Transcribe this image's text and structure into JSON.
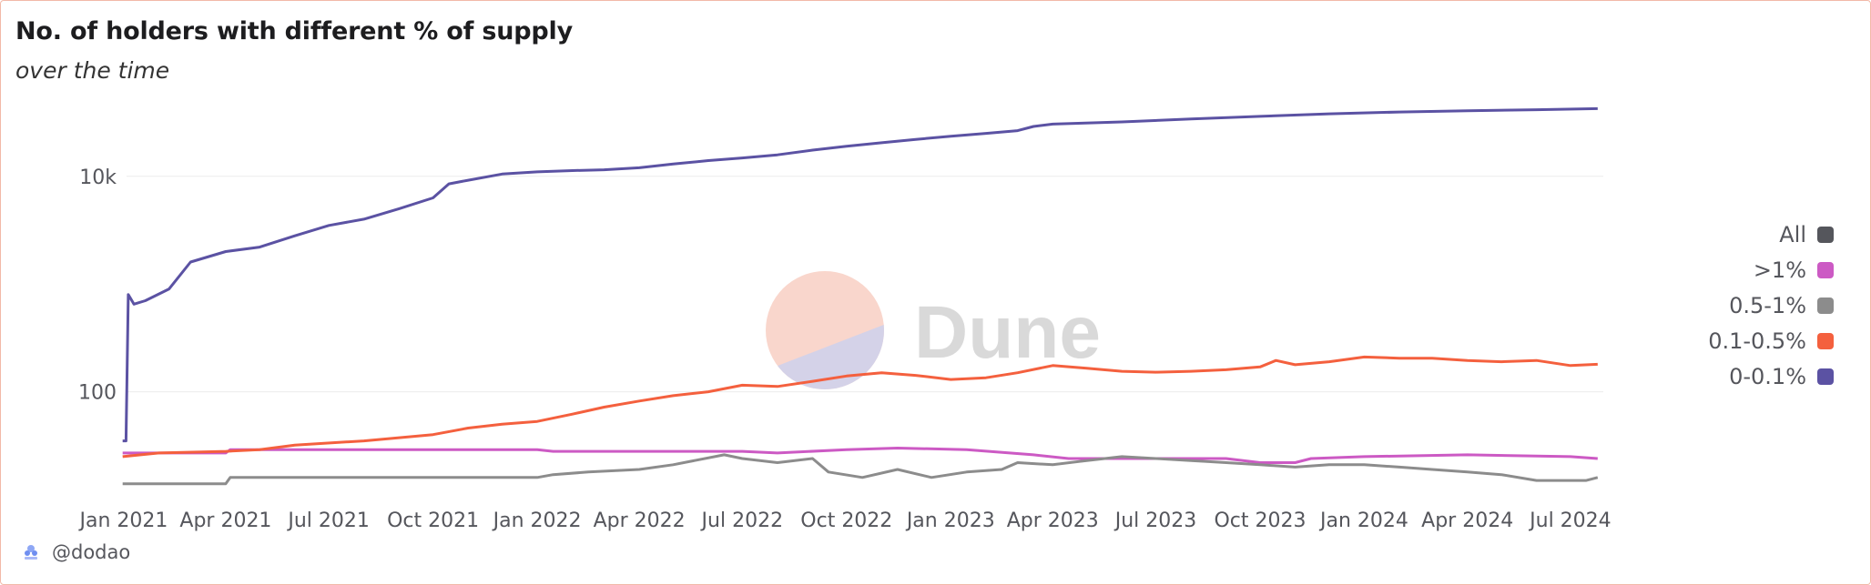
{
  "chart_data": {
    "type": "line",
    "title": "No. of holders with different % of supply",
    "subtitle": "over the time",
    "xlabel": "",
    "ylabel": "",
    "y_scale": "log",
    "ylim": [
      10,
      50000
    ],
    "x_range": [
      "2020-12-20",
      "2024-07-30"
    ],
    "x_tick_labels": [
      "Jan 2021",
      "Apr 2021",
      "Jul 2021",
      "Oct 2021",
      "Jan 2022",
      "Apr 2022",
      "Jul 2022",
      "Oct 2022",
      "Jan 2023",
      "Apr 2023",
      "Jul 2023",
      "Oct 2023",
      "Jan 2024",
      "Apr 2024",
      "Jul 2024"
    ],
    "y_tick_labels": [
      "100",
      "10k"
    ],
    "legend_position": "right",
    "series": [
      {
        "name": "0-0.1%",
        "color": "#5b52a3",
        "points": [
          [
            "2020-12-31",
            35
          ],
          [
            "2021-01-03",
            35
          ],
          [
            "2021-01-05",
            800
          ],
          [
            "2021-01-10",
            650
          ],
          [
            "2021-01-20",
            700
          ],
          [
            "2021-02-10",
            900
          ],
          [
            "2021-03-01",
            1600
          ],
          [
            "2021-04-01",
            2000
          ],
          [
            "2021-05-01",
            2200
          ],
          [
            "2021-06-01",
            2800
          ],
          [
            "2021-07-01",
            3500
          ],
          [
            "2021-08-01",
            4000
          ],
          [
            "2021-09-01",
            5000
          ],
          [
            "2021-10-01",
            6300
          ],
          [
            "2021-10-15",
            8500
          ],
          [
            "2021-11-01",
            9200
          ],
          [
            "2021-12-01",
            10500
          ],
          [
            "2022-01-01",
            11000
          ],
          [
            "2022-02-01",
            11300
          ],
          [
            "2022-03-01",
            11500
          ],
          [
            "2022-04-01",
            12000
          ],
          [
            "2022-05-01",
            13000
          ],
          [
            "2022-06-01",
            14000
          ],
          [
            "2022-07-01",
            14800
          ],
          [
            "2022-08-01",
            15800
          ],
          [
            "2022-09-01",
            17500
          ],
          [
            "2022-10-01",
            19000
          ],
          [
            "2022-11-01",
            20500
          ],
          [
            "2022-12-01",
            22000
          ],
          [
            "2023-01-01",
            23500
          ],
          [
            "2023-02-01",
            25000
          ],
          [
            "2023-03-01",
            26500
          ],
          [
            "2023-03-15",
            29000
          ],
          [
            "2023-04-01",
            30500
          ],
          [
            "2023-06-01",
            32000
          ],
          [
            "2023-08-01",
            34000
          ],
          [
            "2023-10-01",
            36000
          ],
          [
            "2023-12-01",
            38000
          ],
          [
            "2024-02-01",
            39500
          ],
          [
            "2024-04-01",
            40500
          ],
          [
            "2024-06-01",
            41500
          ],
          [
            "2024-07-25",
            42500
          ]
        ]
      },
      {
        "name": "0.1-0.5%",
        "color": "#f4603e",
        "points": [
          [
            "2020-12-31",
            25
          ],
          [
            "2021-02-01",
            27
          ],
          [
            "2021-04-01",
            28
          ],
          [
            "2021-05-01",
            29
          ],
          [
            "2021-06-01",
            32
          ],
          [
            "2021-08-01",
            35
          ],
          [
            "2021-10-01",
            40
          ],
          [
            "2021-11-01",
            46
          ],
          [
            "2021-12-01",
            50
          ],
          [
            "2022-01-01",
            53
          ],
          [
            "2022-02-01",
            62
          ],
          [
            "2022-03-01",
            72
          ],
          [
            "2022-04-01",
            82
          ],
          [
            "2022-05-01",
            92
          ],
          [
            "2022-06-01",
            100
          ],
          [
            "2022-07-01",
            115
          ],
          [
            "2022-08-01",
            112
          ],
          [
            "2022-09-01",
            125
          ],
          [
            "2022-10-01",
            140
          ],
          [
            "2022-11-01",
            150
          ],
          [
            "2022-12-01",
            142
          ],
          [
            "2023-01-01",
            130
          ],
          [
            "2023-02-01",
            135
          ],
          [
            "2023-03-01",
            150
          ],
          [
            "2023-04-01",
            175
          ],
          [
            "2023-05-01",
            165
          ],
          [
            "2023-06-01",
            155
          ],
          [
            "2023-07-01",
            152
          ],
          [
            "2023-08-01",
            155
          ],
          [
            "2023-09-01",
            160
          ],
          [
            "2023-10-01",
            170
          ],
          [
            "2023-10-15",
            195
          ],
          [
            "2023-11-01",
            178
          ],
          [
            "2023-12-01",
            190
          ],
          [
            "2024-01-01",
            210
          ],
          [
            "2024-02-01",
            205
          ],
          [
            "2024-03-01",
            205
          ],
          [
            "2024-04-01",
            195
          ],
          [
            "2024-05-01",
            190
          ],
          [
            "2024-06-01",
            195
          ],
          [
            "2024-07-01",
            175
          ],
          [
            "2024-07-25",
            180
          ]
        ]
      },
      {
        "name": "0.5-1%",
        "color": "#8c8c8c",
        "points": [
          [
            "2020-12-31",
            14
          ],
          [
            "2021-04-01",
            14
          ],
          [
            "2021-04-05",
            16
          ],
          [
            "2021-07-01",
            16
          ],
          [
            "2022-01-01",
            16
          ],
          [
            "2022-01-15",
            17
          ],
          [
            "2022-02-15",
            18
          ],
          [
            "2022-04-01",
            19
          ],
          [
            "2022-05-01",
            21
          ],
          [
            "2022-06-15",
            26
          ],
          [
            "2022-07-01",
            24
          ],
          [
            "2022-08-01",
            22
          ],
          [
            "2022-09-01",
            24
          ],
          [
            "2022-09-15",
            18
          ],
          [
            "2022-10-15",
            16
          ],
          [
            "2022-11-15",
            19
          ],
          [
            "2022-12-15",
            16
          ],
          [
            "2023-01-15",
            18
          ],
          [
            "2023-02-15",
            19
          ],
          [
            "2023-03-01",
            22
          ],
          [
            "2023-04-01",
            21
          ],
          [
            "2023-05-01",
            23
          ],
          [
            "2023-06-01",
            25
          ],
          [
            "2023-07-01",
            24
          ],
          [
            "2023-08-01",
            23
          ],
          [
            "2023-09-01",
            22
          ],
          [
            "2023-10-01",
            21
          ],
          [
            "2023-11-01",
            20
          ],
          [
            "2023-12-01",
            21
          ],
          [
            "2024-01-01",
            21
          ],
          [
            "2024-02-01",
            20
          ],
          [
            "2024-03-01",
            19
          ],
          [
            "2024-04-01",
            18
          ],
          [
            "2024-05-01",
            17
          ],
          [
            "2024-06-01",
            15
          ],
          [
            "2024-07-15",
            15
          ],
          [
            "2024-07-25",
            16
          ]
        ]
      },
      {
        "name": ">1%",
        "color": "#cc5ac4",
        "points": [
          [
            "2020-12-31",
            27
          ],
          [
            "2021-04-01",
            27
          ],
          [
            "2021-04-05",
            29
          ],
          [
            "2022-01-01",
            29
          ],
          [
            "2022-01-15",
            28
          ],
          [
            "2022-07-01",
            28
          ],
          [
            "2022-08-01",
            27
          ],
          [
            "2022-10-01",
            29
          ],
          [
            "2022-11-15",
            30
          ],
          [
            "2023-01-15",
            29
          ],
          [
            "2023-03-15",
            26
          ],
          [
            "2023-04-15",
            24
          ],
          [
            "2023-07-01",
            24
          ],
          [
            "2023-09-01",
            24
          ],
          [
            "2023-10-01",
            22
          ],
          [
            "2023-11-01",
            22
          ],
          [
            "2023-11-15",
            24
          ],
          [
            "2024-01-01",
            25
          ],
          [
            "2024-04-01",
            26
          ],
          [
            "2024-07-01",
            25
          ],
          [
            "2024-07-25",
            24
          ]
        ]
      },
      {
        "name": "All",
        "color": "#55565c",
        "points": []
      }
    ]
  },
  "legend": {
    "items": [
      {
        "label": "All",
        "color": "#55565c"
      },
      {
        "label": ">1%",
        "color": "#cc5ac4"
      },
      {
        "label": "0.5-1%",
        "color": "#8c8c8c"
      },
      {
        "label": "0.1-0.5%",
        "color": "#f4603e"
      },
      {
        "label": "0-0.1%",
        "color": "#5b52a3"
      }
    ]
  },
  "watermark": {
    "text": "Dune"
  },
  "credit": {
    "handle": "@dodao",
    "icon": "dodao-logo-icon"
  }
}
